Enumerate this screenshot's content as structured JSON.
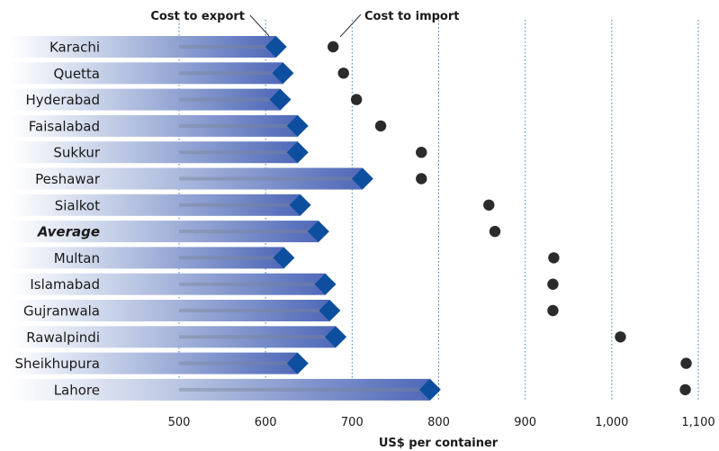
{
  "chart_data": {
    "type": "dumbbell",
    "xlabel": "US$ per container",
    "xlim": [
      450,
      1100
    ],
    "xticks": [
      500,
      600,
      700,
      800,
      900,
      1000,
      1100
    ],
    "xtick_labels": [
      "500",
      "600",
      "700",
      "800",
      "900",
      "1,000",
      "1,100"
    ],
    "grid": "vertical dotted",
    "series": [
      {
        "name": "Cost to export",
        "marker": "diamond",
        "color": "#0d4f9e"
      },
      {
        "name": "Cost to import",
        "marker": "circle",
        "color": "#2b2b2b"
      }
    ],
    "rows": [
      {
        "city": "Karachi",
        "export": 612,
        "import": 678,
        "highlight": false
      },
      {
        "city": "Quetta",
        "export": 620,
        "import": 690,
        "highlight": false
      },
      {
        "city": "Hyderabad",
        "export": 617,
        "import": 705,
        "highlight": false
      },
      {
        "city": "Faisalabad",
        "export": 637,
        "import": 733,
        "highlight": false
      },
      {
        "city": "Sukkur",
        "export": 637,
        "import": 780,
        "highlight": false
      },
      {
        "city": "Peshawar",
        "export": 712,
        "import": 780,
        "highlight": false
      },
      {
        "city": "Sialkot",
        "export": 640,
        "import": 858,
        "highlight": false
      },
      {
        "city": "Average",
        "export": 661,
        "import": 865,
        "highlight": true
      },
      {
        "city": "Multan",
        "export": 621,
        "import": 933,
        "highlight": false
      },
      {
        "city": "Islamabad",
        "export": 669,
        "import": 932,
        "highlight": false
      },
      {
        "city": "Gujranwala",
        "export": 674,
        "import": 932,
        "highlight": false
      },
      {
        "city": "Rawalpindi",
        "export": 681,
        "import": 1010,
        "highlight": false
      },
      {
        "city": "Sheikhupura",
        "export": 637,
        "import": 1086,
        "highlight": false
      },
      {
        "city": "Lahore",
        "export": 790,
        "import": 1085,
        "highlight": false
      }
    ]
  }
}
